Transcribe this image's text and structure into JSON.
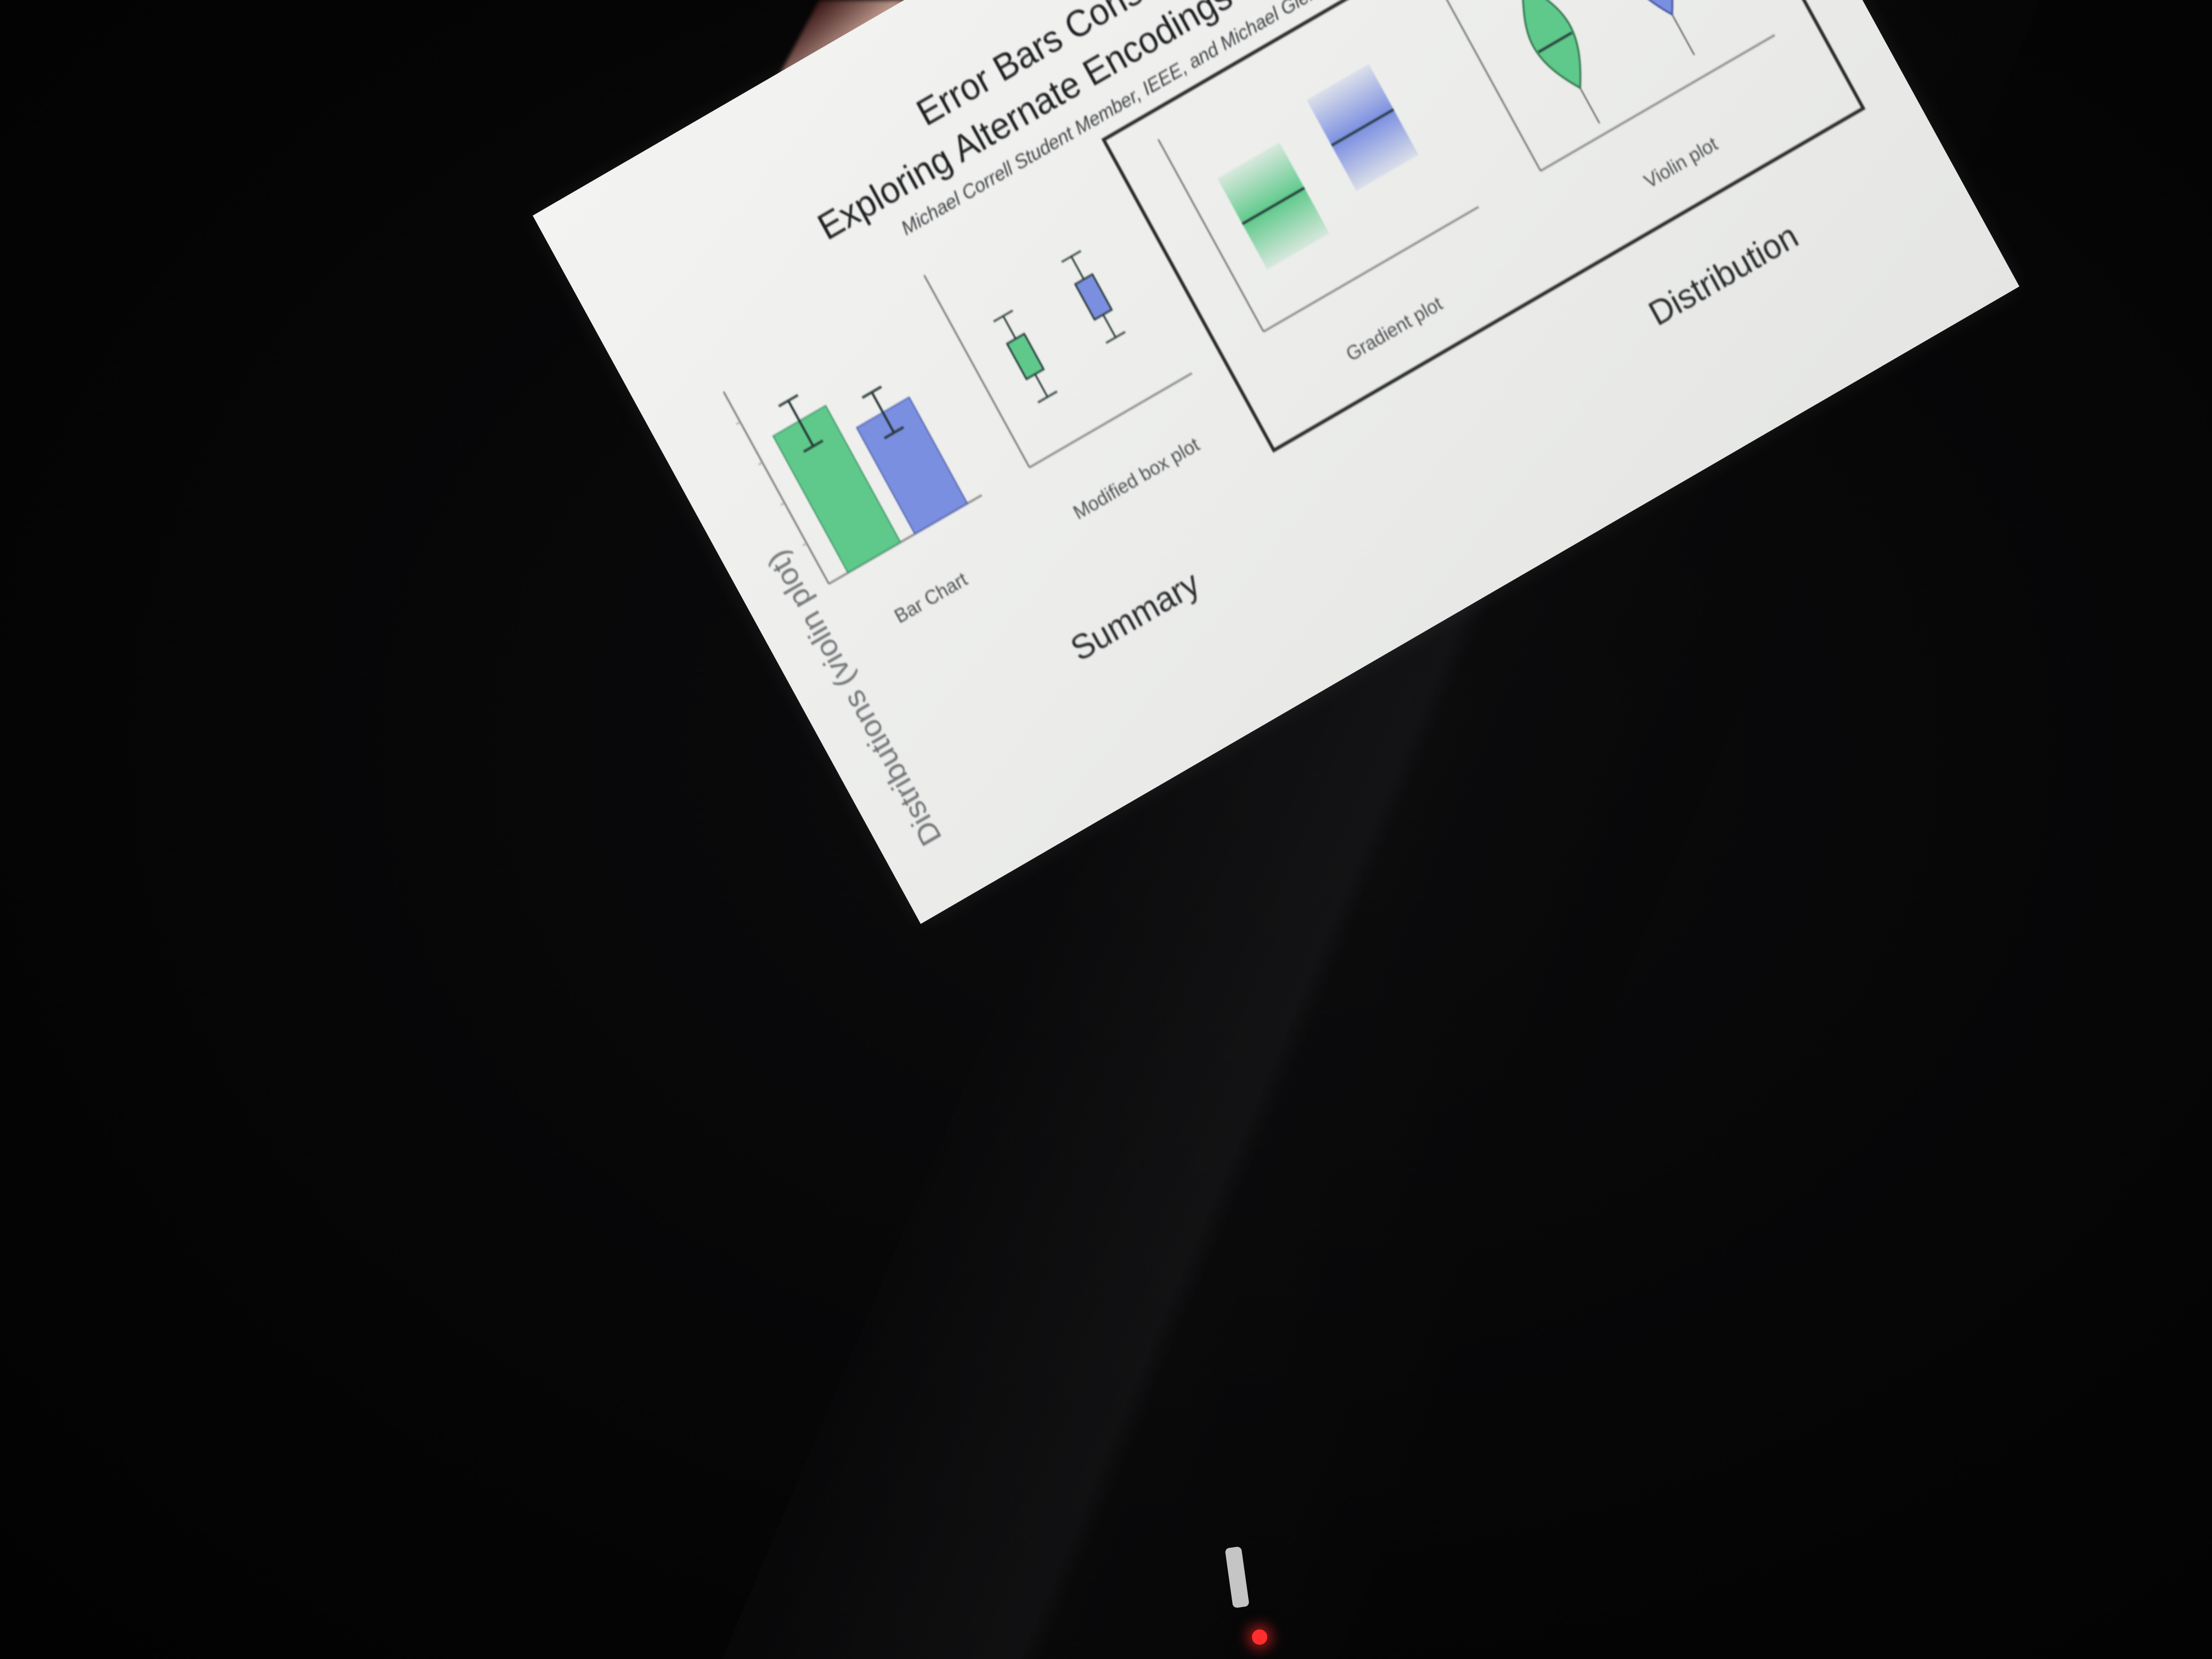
{
  "colors": {
    "room": "#050506",
    "slide_background": "#eeeeec",
    "series_a": "#5fc98b",
    "series_b": "#7b8fe0",
    "frame": "#2b2b2b",
    "status_led": "#ff2e2e"
  },
  "slide": {
    "header": "Distributions (violin plot)",
    "title_line_1": "Error Bars Considered Harmful:",
    "title_line_2": "Exploring Alternate Encodings for Mean and Error",
    "authors": "Michael Correll Student Member, IEEE, and Michael Gleicher Member, IEEE",
    "panels": [
      {
        "label": "Bar Chart"
      },
      {
        "label": "Modified box plot"
      },
      {
        "label": "Gradient plot"
      },
      {
        "label": "Violin plot"
      }
    ],
    "groups": {
      "summary": "Summary",
      "distribution": "Distribution"
    }
  }
}
